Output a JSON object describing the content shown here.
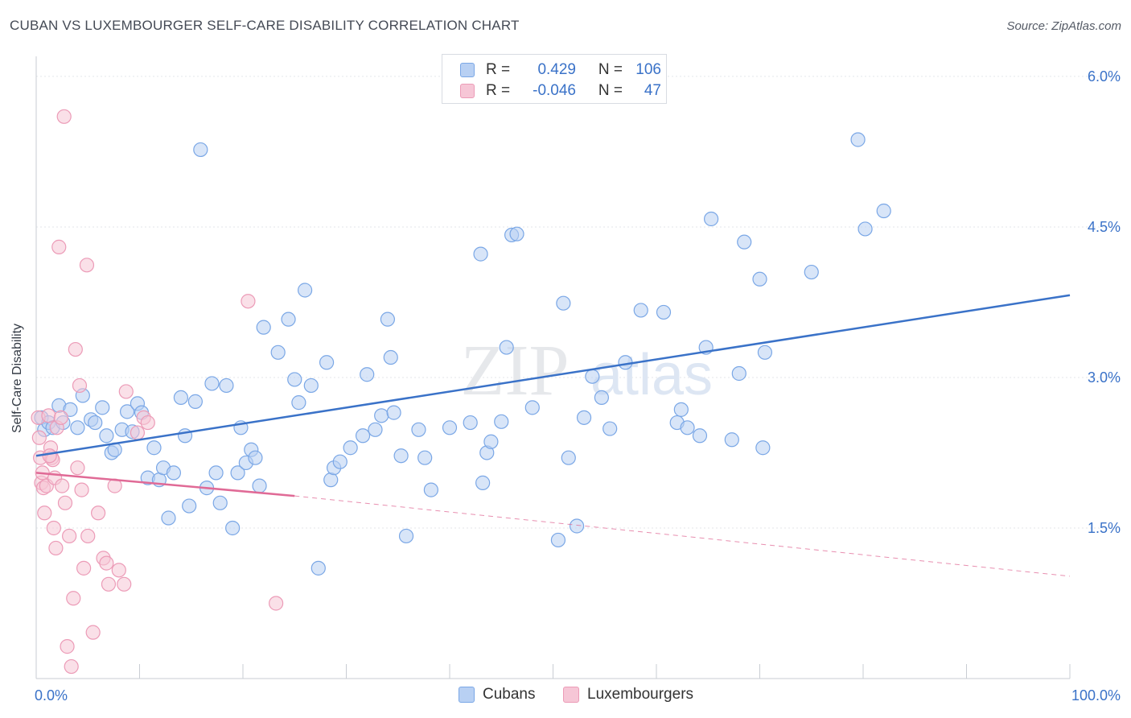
{
  "title": "CUBAN VS LUXEMBOURGER SELF-CARE DISABILITY CORRELATION CHART",
  "source": "Source: ZipAtlas.com",
  "legend": {
    "rows": [
      {
        "r_label": "R =",
        "r_value": "0.429",
        "n_label": "N =",
        "n_value": "106",
        "color": "#7aa7e6",
        "fill": "#b8d0f3"
      },
      {
        "r_label": "R =",
        "r_value": "-0.046",
        "n_label": "N =",
        "n_value": "47",
        "color": "#ec9bb7",
        "fill": "#f6c6d6"
      }
    ]
  },
  "bottom_legend": [
    "Cubans",
    "Luxembourgers"
  ],
  "chart_data": {
    "type": "scatter",
    "title": "CUBAN VS LUXEMBOURGER SELF-CARE DISABILITY CORRELATION CHART",
    "xlabel": "",
    "ylabel": "Self-Care Disability",
    "x_tick_labels": [
      "0.0%",
      "100.0%"
    ],
    "y_tick_labels": [
      "1.5%",
      "3.0%",
      "4.5%",
      "6.0%"
    ],
    "y_ticks": [
      1.5,
      3.0,
      4.5,
      6.0
    ],
    "xlim": [
      0,
      100
    ],
    "ylim": [
      0,
      6.2
    ],
    "grid": true,
    "legend_position": "top-center",
    "series": [
      {
        "name": "Cubans",
        "color": "#3a72c8",
        "fill": "#b8d0f3",
        "trend": {
          "x": [
            0,
            100
          ],
          "y": [
            2.22,
            3.82
          ],
          "dashed_from": null
        },
        "points": [
          [
            0.5,
            2.6
          ],
          [
            0.8,
            2.48
          ],
          [
            1.2,
            2.55
          ],
          [
            1.6,
            2.5
          ],
          [
            2.2,
            2.72
          ],
          [
            2.6,
            2.55
          ],
          [
            3.3,
            2.68
          ],
          [
            4.0,
            2.5
          ],
          [
            4.5,
            2.82
          ],
          [
            5.3,
            2.58
          ],
          [
            5.7,
            2.55
          ],
          [
            6.4,
            2.7
          ],
          [
            6.8,
            2.42
          ],
          [
            7.3,
            2.25
          ],
          [
            7.6,
            2.28
          ],
          [
            8.3,
            2.48
          ],
          [
            8.8,
            2.66
          ],
          [
            9.3,
            2.46
          ],
          [
            9.8,
            2.74
          ],
          [
            10.2,
            2.65
          ],
          [
            10.8,
            2.0
          ],
          [
            11.4,
            2.3
          ],
          [
            11.9,
            1.98
          ],
          [
            12.3,
            2.1
          ],
          [
            12.8,
            1.6
          ],
          [
            13.3,
            2.05
          ],
          [
            14.0,
            2.8
          ],
          [
            14.4,
            2.42
          ],
          [
            14.8,
            1.72
          ],
          [
            15.4,
            2.76
          ],
          [
            15.9,
            5.27
          ],
          [
            16.5,
            1.9
          ],
          [
            17.0,
            2.94
          ],
          [
            17.4,
            2.05
          ],
          [
            17.8,
            1.75
          ],
          [
            18.4,
            2.92
          ],
          [
            19.0,
            1.5
          ],
          [
            19.5,
            2.05
          ],
          [
            19.8,
            2.5
          ],
          [
            20.3,
            2.15
          ],
          [
            20.8,
            2.28
          ],
          [
            21.2,
            2.2
          ],
          [
            21.6,
            1.92
          ],
          [
            22.0,
            3.5
          ],
          [
            23.4,
            3.25
          ],
          [
            24.4,
            3.58
          ],
          [
            25.0,
            2.98
          ],
          [
            25.4,
            2.75
          ],
          [
            26.0,
            3.87
          ],
          [
            26.6,
            2.92
          ],
          [
            27.3,
            1.1
          ],
          [
            28.1,
            3.15
          ],
          [
            28.5,
            1.98
          ],
          [
            28.8,
            2.1
          ],
          [
            29.4,
            2.16
          ],
          [
            30.4,
            2.3
          ],
          [
            31.6,
            2.42
          ],
          [
            32.0,
            3.03
          ],
          [
            32.8,
            2.48
          ],
          [
            33.4,
            2.62
          ],
          [
            34.0,
            3.58
          ],
          [
            34.3,
            3.2
          ],
          [
            34.6,
            2.65
          ],
          [
            35.3,
            2.22
          ],
          [
            35.8,
            1.42
          ],
          [
            37.0,
            2.48
          ],
          [
            37.6,
            2.2
          ],
          [
            38.2,
            1.88
          ],
          [
            40.0,
            2.5
          ],
          [
            42.0,
            2.55
          ],
          [
            43.0,
            4.23
          ],
          [
            43.2,
            1.95
          ],
          [
            43.6,
            2.25
          ],
          [
            44.0,
            2.36
          ],
          [
            45.0,
            2.56
          ],
          [
            45.5,
            3.3
          ],
          [
            46.0,
            4.42
          ],
          [
            46.5,
            4.43
          ],
          [
            48.0,
            2.7
          ],
          [
            50.5,
            1.38
          ],
          [
            51.0,
            3.74
          ],
          [
            51.5,
            2.2
          ],
          [
            52.3,
            1.52
          ],
          [
            53.0,
            2.6
          ],
          [
            53.8,
            3.01
          ],
          [
            54.7,
            2.8
          ],
          [
            55.5,
            2.49
          ],
          [
            57.0,
            3.15
          ],
          [
            58.5,
            3.67
          ],
          [
            60.7,
            3.65
          ],
          [
            62.0,
            2.55
          ],
          [
            62.4,
            2.68
          ],
          [
            63.0,
            2.5
          ],
          [
            64.2,
            2.42
          ],
          [
            64.8,
            3.3
          ],
          [
            65.3,
            4.58
          ],
          [
            67.3,
            2.38
          ],
          [
            68.0,
            3.04
          ],
          [
            68.5,
            4.35
          ],
          [
            70.0,
            3.98
          ],
          [
            70.3,
            2.3
          ],
          [
            70.5,
            3.25
          ],
          [
            75.0,
            4.05
          ],
          [
            79.5,
            5.37
          ],
          [
            80.2,
            4.48
          ],
          [
            82.0,
            4.66
          ]
        ]
      },
      {
        "name": "Luxembourgers",
        "color": "#e06a96",
        "fill": "#f6c6d6",
        "trend": {
          "x": [
            0,
            25,
            100
          ],
          "y": [
            2.05,
            1.82,
            1.02
          ],
          "dashed_from": 25
        },
        "points": [
          [
            0.2,
            2.6
          ],
          [
            0.3,
            2.4
          ],
          [
            0.4,
            2.2
          ],
          [
            0.5,
            1.95
          ],
          [
            0.6,
            2.05
          ],
          [
            0.7,
            1.9
          ],
          [
            0.8,
            1.65
          ],
          [
            1.0,
            1.92
          ],
          [
            1.2,
            2.62
          ],
          [
            1.4,
            2.3
          ],
          [
            1.5,
            2.2
          ],
          [
            1.6,
            2.18
          ],
          [
            1.7,
            1.5
          ],
          [
            1.8,
            2.0
          ],
          [
            1.9,
            1.3
          ],
          [
            2.0,
            2.5
          ],
          [
            2.2,
            4.3
          ],
          [
            2.4,
            2.6
          ],
          [
            2.5,
            1.92
          ],
          [
            2.7,
            5.6
          ],
          [
            2.8,
            1.75
          ],
          [
            3.0,
            0.32
          ],
          [
            3.2,
            1.42
          ],
          [
            3.4,
            0.12
          ],
          [
            3.6,
            0.8
          ],
          [
            3.8,
            3.28
          ],
          [
            4.0,
            2.1
          ],
          [
            4.2,
            2.92
          ],
          [
            4.4,
            1.88
          ],
          [
            4.6,
            1.1
          ],
          [
            4.9,
            4.12
          ],
          [
            5.0,
            1.42
          ],
          [
            5.5,
            0.46
          ],
          [
            6.0,
            1.65
          ],
          [
            6.5,
            1.2
          ],
          [
            6.8,
            1.15
          ],
          [
            7.0,
            0.94
          ],
          [
            7.6,
            1.92
          ],
          [
            8.0,
            1.08
          ],
          [
            8.5,
            0.94
          ],
          [
            8.7,
            2.86
          ],
          [
            9.8,
            2.45
          ],
          [
            10.4,
            2.6
          ],
          [
            10.8,
            2.55
          ],
          [
            20.5,
            3.76
          ],
          [
            23.2,
            0.75
          ],
          [
            1.3,
            2.22
          ]
        ]
      }
    ]
  }
}
